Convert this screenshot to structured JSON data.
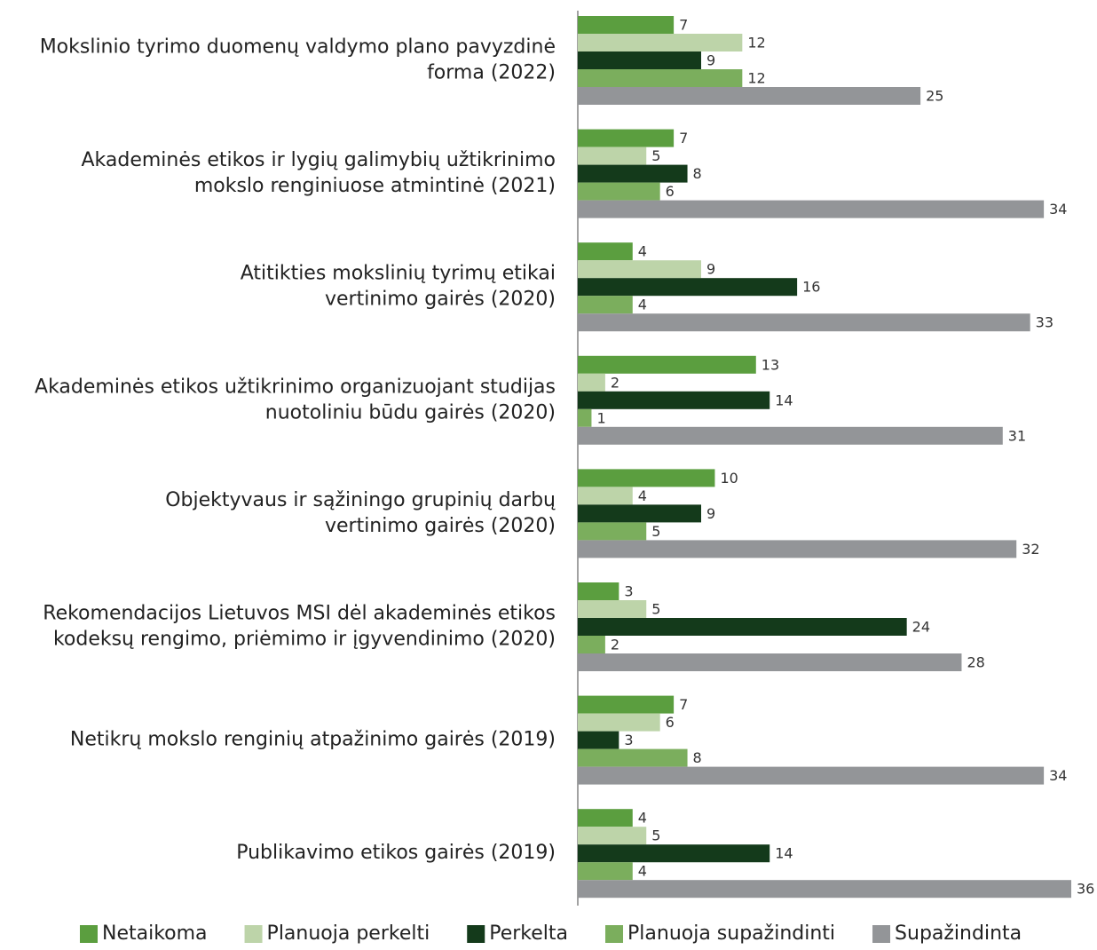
{
  "chart_data": {
    "type": "barh",
    "categories": [
      [
        "Mokslinio tyrimo duomenų valdymo plano pavyzdinė",
        "forma (2022)"
      ],
      [
        "Akademinės etikos ir lygių galimybių užtikrinimo",
        "mokslo renginiuose atmintinė (2021)"
      ],
      [
        "Atitikties mokslinių tyrimų etikai",
        "vertinimo gairės (2020)"
      ],
      [
        "Akademinės etikos užtikrinimo organizuojant studijas",
        "nuotoliniu būdu gairės (2020)"
      ],
      [
        "Objektyvaus ir sąžiningo grupinių darbų",
        "vertinimo gairės (2020)"
      ],
      [
        "Rekomendacijos Lietuvos MSI dėl akademinės etikos",
        "kodeksų rengimo, priėmimo ir įgyvendinimo (2020)"
      ],
      [
        "Netikrų mokslo renginių atpažinimo gairės (2019)"
      ],
      [
        "Publikavimo etikos gairės (2019)"
      ]
    ],
    "series": [
      {
        "name": "Netaikoma",
        "color": "#5b9e3f",
        "values": [
          7,
          7,
          4,
          13,
          10,
          3,
          7,
          4
        ]
      },
      {
        "name": "Planuoja perkelti",
        "color": "#bdd4a9",
        "values": [
          12,
          5,
          9,
          2,
          4,
          5,
          6,
          5
        ]
      },
      {
        "name": "Perkelta",
        "color": "#143a1b",
        "values": [
          9,
          8,
          16,
          14,
          9,
          24,
          3,
          14
        ]
      },
      {
        "name": "Planuoja supažindinti",
        "color": "#7bae5d",
        "values": [
          12,
          6,
          4,
          1,
          5,
          2,
          8,
          4
        ]
      },
      {
        "name": "Supažindinta",
        "color": "#939598",
        "values": [
          25,
          34,
          33,
          31,
          32,
          28,
          34,
          36
        ]
      }
    ],
    "xlim": [
      0,
      36
    ],
    "legend": "bottom"
  }
}
